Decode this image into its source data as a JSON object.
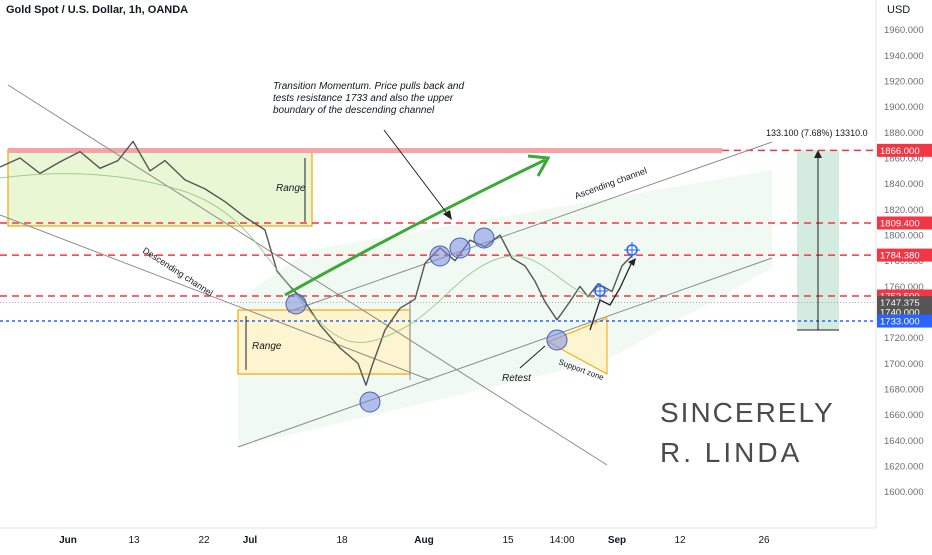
{
  "header": {
    "symbol": "Gold Spot / U.S. Dollar, 1h, OANDA",
    "currency": "USD"
  },
  "chart_data": {
    "type": "line",
    "series": [
      {
        "values": [
          [
            0,
            1853
          ],
          [
            20,
            1860
          ],
          [
            40,
            1848
          ],
          [
            60,
            1857
          ],
          [
            80,
            1865
          ],
          [
            100,
            1852
          ],
          [
            118,
            1858
          ],
          [
            133,
            1873
          ],
          [
            150,
            1850
          ],
          [
            165,
            1858
          ],
          [
            185,
            1843
          ],
          [
            205,
            1836
          ],
          [
            225,
            1826
          ],
          [
            245,
            1814
          ],
          [
            265,
            1804
          ],
          [
            277,
            1772
          ],
          [
            290,
            1760
          ],
          [
            305,
            1748
          ],
          [
            320,
            1730
          ],
          [
            340,
            1712
          ],
          [
            358,
            1700
          ],
          [
            366,
            1683
          ],
          [
            372,
            1698
          ],
          [
            385,
            1726
          ],
          [
            400,
            1743
          ],
          [
            415,
            1750
          ],
          [
            425,
            1778
          ],
          [
            440,
            1790
          ],
          [
            455,
            1780
          ],
          [
            470,
            1796
          ],
          [
            485,
            1791
          ],
          [
            500,
            1800
          ],
          [
            512,
            1782
          ],
          [
            525,
            1776
          ],
          [
            535,
            1764
          ],
          [
            545,
            1748
          ],
          [
            557,
            1734
          ],
          [
            568,
            1746
          ],
          [
            580,
            1760
          ],
          [
            588,
            1752
          ],
          [
            598,
            1762
          ],
          [
            612,
            1756
          ],
          [
            622,
            1776
          ],
          [
            632,
            1784
          ]
        ]
      }
    ],
    "y_axis": {
      "min": 1585,
      "max": 1966,
      "ticks": [
        1600,
        1620,
        1640,
        1660,
        1680,
        1700,
        1720,
        1740,
        1760,
        1780,
        1800,
        1820,
        1840,
        1860,
        1880,
        1900,
        1920,
        1940,
        1960
      ],
      "tick_labels": [
        "1600.000",
        "1620.000",
        "1640.000",
        "1660.000",
        "1680.000",
        "1700.000",
        "1720.000",
        "1740.000",
        "1760.000",
        "1780.000",
        "1800.000",
        "1820.000",
        "1840.000",
        "1860.000",
        "1880.000",
        "1900.000",
        "1920.000",
        "1940.000",
        "1960.000"
      ]
    },
    "x_axis": {
      "labels": [
        {
          "text": "Jun",
          "bold": true
        },
        {
          "text": "13",
          "bold": false
        },
        {
          "text": "22",
          "bold": false
        },
        {
          "text": "Jul",
          "bold": true
        },
        {
          "text": "18",
          "bold": false
        },
        {
          "text": "Aug",
          "bold": true
        },
        {
          "text": "15",
          "bold": false
        },
        {
          "text": "14:00",
          "bold": false
        },
        {
          "text": "Sep",
          "bold": true
        },
        {
          "text": "12",
          "bold": false
        },
        {
          "text": "26",
          "bold": false
        }
      ]
    },
    "price_labels": [
      {
        "value": 1866,
        "text": "1866.000",
        "color": "#f23645"
      },
      {
        "value": 1809.4,
        "text": "1809.400",
        "color": "#f23645"
      },
      {
        "value": 1784.38,
        "text": "1784.380",
        "color": "#f23645"
      },
      {
        "value": 1752.5,
        "text": "1752.500",
        "color": "#f23645"
      },
      {
        "value": 1747.375,
        "text": "1747.375",
        "color": "#555555"
      },
      {
        "value": 1740,
        "text": "1740.000",
        "color": "#555555"
      },
      {
        "value": 1733,
        "text": "1733.000",
        "color": "#2962ff"
      }
    ],
    "annotations": {
      "transition": [
        "Transition Momentum. Price pulls back and",
        "tests resistance 1733 and also the upper",
        "boundary of the descending channel"
      ],
      "range_top": "Range",
      "range_bottom": "Range",
      "descending_channel": "Descending channel",
      "ascending_channel": "Ascending channel",
      "retest": "Retest",
      "support_zone": "Support zone",
      "measure": "133.100 (7.68%) 13310.0",
      "signature_line1": "SINCERELY",
      "signature_line2": "R. LINDA"
    },
    "colors": {
      "resistance_dashed": "#f23645",
      "support_dashed": "#2962ff",
      "range_box": "#f7a600",
      "momentum_arrow": "#3aa935",
      "touch_circle": "#7b8ee0",
      "price_line": "#555555"
    }
  }
}
